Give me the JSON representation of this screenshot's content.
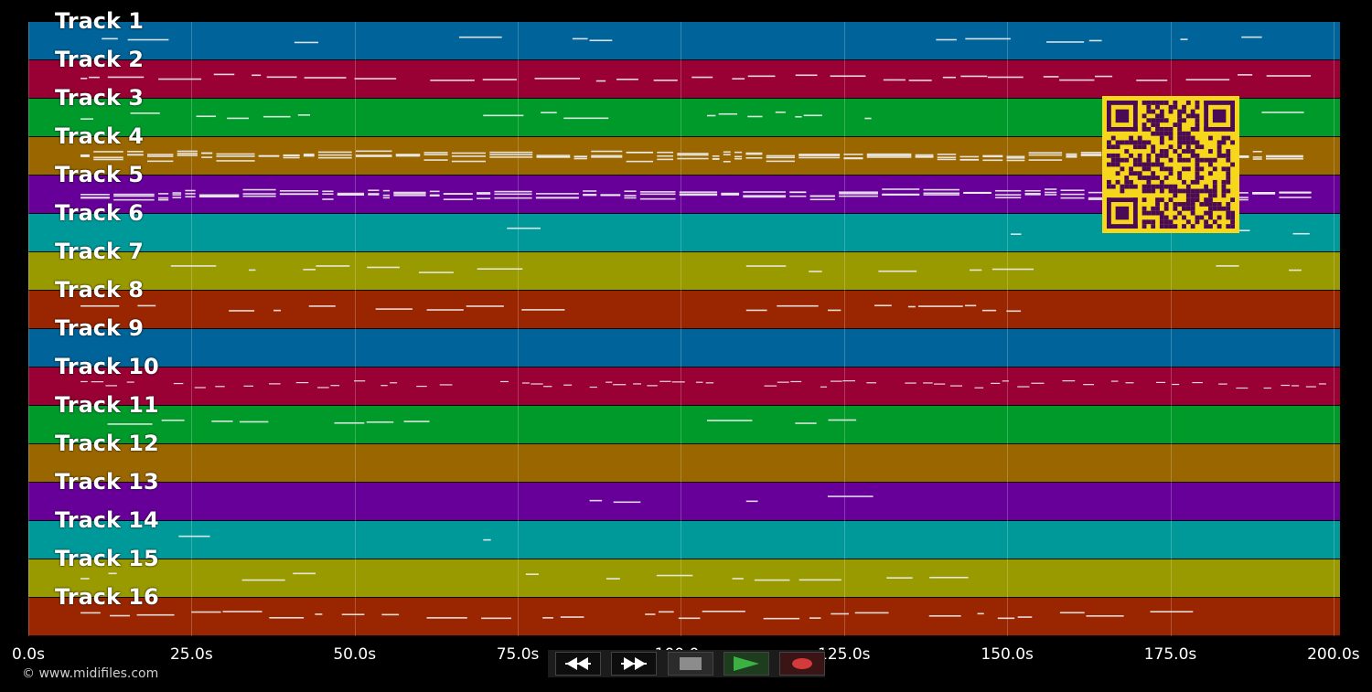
{
  "tracks": [
    {
      "label": "Track 1",
      "color": "#00639a"
    },
    {
      "label": "Track 2",
      "color": "#990033"
    },
    {
      "label": "Track 3",
      "color": "#009a2a"
    },
    {
      "label": "Track 4",
      "color": "#996600"
    },
    {
      "label": "Track 5",
      "color": "#660099"
    },
    {
      "label": "Track 6",
      "color": "#009999"
    },
    {
      "label": "Track 7",
      "color": "#999900"
    },
    {
      "label": "Track 8",
      "color": "#992600"
    },
    {
      "label": "Track 9",
      "color": "#00639a"
    },
    {
      "label": "Track 10",
      "color": "#990033"
    },
    {
      "label": "Track 11",
      "color": "#009a2a"
    },
    {
      "label": "Track 12",
      "color": "#996600"
    },
    {
      "label": "Track 13",
      "color": "#660099"
    },
    {
      "label": "Track 14",
      "color": "#009999"
    },
    {
      "label": "Track 15",
      "color": "#999900"
    },
    {
      "label": "Track 16",
      "color": "#992600"
    }
  ],
  "timeline": {
    "ticks": [
      "0.0s",
      "25.0s",
      "50.0s",
      "75.0s",
      "100.0s",
      "125.0s",
      "150.0s",
      "175.0s",
      "200.0s"
    ],
    "tick_values": [
      0,
      25,
      50,
      75,
      100,
      125,
      150,
      175,
      200
    ],
    "max_seconds": 201
  },
  "transport": {
    "rewind_icon": "double-left-arrow",
    "forward_icon": "double-right-arrow",
    "stop_icon": "square",
    "play_icon": "triangle",
    "record_icon": "circle",
    "play_color": "#3cb043",
    "record_color": "#d43a3a"
  },
  "qr_code": {
    "color": "#f6d71c",
    "module_color": "#4b0a54"
  },
  "copyright": "© www.midifiles.com"
}
